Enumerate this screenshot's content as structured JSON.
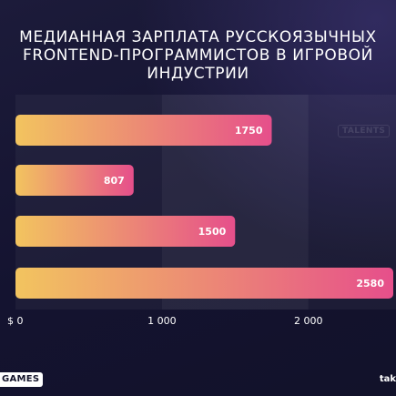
{
  "title_lines": [
    "МЕДИАННАЯ ЗАРПЛАТА РУССКОЯЗЫЧНЫХ",
    "FRONTEND-ПРОГРАММИСТОВ В ИГРОВОЙ",
    "ИНДУСТРИИ"
  ],
  "watermark": "TALENTS",
  "footer": {
    "left_label": "GAMES",
    "right_label": "tak"
  },
  "colors": {
    "background": "#14142b",
    "bar_start": "#f2c45f",
    "bar_end": "#e64f8b",
    "axis_text": "#ffffff"
  },
  "chart_data": {
    "type": "bar",
    "orientation": "horizontal",
    "title": "МЕДИАННАЯ ЗАРПЛАТА РУССКОЯЗЫЧНЫХ FRONTEND-ПРОГРАММИСТОВ В ИГРОВОЙ ИНДУСТРИИ",
    "values": [
      1750,
      807,
      1500,
      2580
    ],
    "value_labels": [
      "1750",
      "807",
      "1500",
      "2580"
    ],
    "x_ticks": [
      0,
      1000,
      2000
    ],
    "x_tick_labels": [
      "$ 0",
      "1 000",
      "2 000"
    ],
    "xlim": [
      0,
      2580
    ],
    "grid": true
  }
}
